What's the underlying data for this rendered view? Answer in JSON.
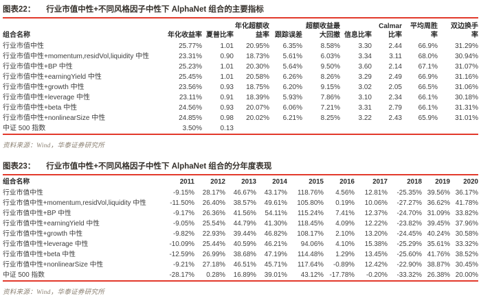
{
  "colors": {
    "rule_red": "#e2382a",
    "title_color": "#35302b",
    "text_color": "#3d3d3d",
    "source_color": "#8b8072"
  },
  "figure22": {
    "label": "图表22：",
    "title": "行业市值中性+不同风格因子中性下 AlphaNet 组合的主要指标",
    "col_headers": [
      "组合名称",
      "年化收益率",
      "夏普比率",
      "年化超额收\n益率",
      "跟踪误差",
      "超额收益最\n大回撤",
      "信息比率",
      "Calmar\n比率",
      "平均周胜\n率",
      "双边换手\n率"
    ],
    "rows": [
      [
        "行业市值中性",
        "25.77%",
        "1.01",
        "20.95%",
        "6.35%",
        "8.58%",
        "3.30",
        "2.44",
        "66.9%",
        "31.29%"
      ],
      [
        "行业市值中性+momentum,residVol,liquidity 中性",
        "23.31%",
        "0.90",
        "18.73%",
        "5.61%",
        "6.03%",
        "3.34",
        "3.11",
        "68.0%",
        "30.94%"
      ],
      [
        "行业市值中性+BP 中性",
        "25.23%",
        "1.01",
        "20.30%",
        "5.64%",
        "9.50%",
        "3.60",
        "2.14",
        "67.1%",
        "31.07%"
      ],
      [
        "行业市值中性+earningYield 中性",
        "25.45%",
        "1.01",
        "20.58%",
        "6.26%",
        "8.26%",
        "3.29",
        "2.49",
        "66.9%",
        "31.16%"
      ],
      [
        "行业市值中性+growth 中性",
        "23.56%",
        "0.93",
        "18.75%",
        "6.20%",
        "9.15%",
        "3.02",
        "2.05",
        "66.5%",
        "31.06%"
      ],
      [
        "行业市值中性+leverage 中性",
        "23.11%",
        "0.91",
        "18.39%",
        "5.93%",
        "7.86%",
        "3.10",
        "2.34",
        "66.1%",
        "30.18%"
      ],
      [
        "行业市值中性+beta 中性",
        "24.56%",
        "0.93",
        "20.07%",
        "6.06%",
        "7.21%",
        "3.31",
        "2.79",
        "66.1%",
        "31.31%"
      ],
      [
        "行业市值中性+nonlinearSize 中性",
        "24.85%",
        "0.98",
        "20.02%",
        "6.21%",
        "8.25%",
        "3.22",
        "2.43",
        "65.9%",
        "31.01%"
      ],
      [
        "中证 500 指数",
        "3.50%",
        "0.13",
        "",
        "",
        "",
        "",
        "",
        "",
        ""
      ]
    ],
    "source": "资料来源：Wind，华泰证券研究所"
  },
  "figure23": {
    "label": "图表23：",
    "title": "行业市值中性+不同风格因子中性下 AlphaNet 组合的分年度表现",
    "col_headers": [
      "组合名称",
      "2011",
      "2012",
      "2013",
      "2014",
      "2015",
      "2016",
      "2017",
      "2018",
      "2019",
      "2020"
    ],
    "rows": [
      [
        "行业市值中性",
        "-9.15%",
        "28.17%",
        "46.67%",
        "43.17%",
        "118.76%",
        "4.56%",
        "12.81%",
        "-25.35%",
        "39.56%",
        "36.17%"
      ],
      [
        "行业市值中性+momentum,residVol,liquidity 中性",
        "-11.50%",
        "26.40%",
        "38.57%",
        "49.61%",
        "105.80%",
        "0.19%",
        "10.06%",
        "-27.27%",
        "36.62%",
        "41.78%"
      ],
      [
        "行业市值中性+BP 中性",
        "-9.17%",
        "26.36%",
        "41.56%",
        "54.11%",
        "115.24%",
        "7.41%",
        "12.37%",
        "-24.70%",
        "31.09%",
        "33.82%"
      ],
      [
        "行业市值中性+earningYield 中性",
        "-9.05%",
        "25.54%",
        "44.79%",
        "41.30%",
        "118.45%",
        "4.09%",
        "12.22%",
        "-23.82%",
        "39.45%",
        "37.96%"
      ],
      [
        "行业市值中性+growth 中性",
        "-9.82%",
        "22.93%",
        "39.44%",
        "46.82%",
        "108.17%",
        "2.10%",
        "13.20%",
        "-24.45%",
        "40.24%",
        "30.58%"
      ],
      [
        "行业市值中性+leverage 中性",
        "-10.09%",
        "25.44%",
        "40.59%",
        "46.21%",
        "94.06%",
        "4.10%",
        "15.38%",
        "-25.29%",
        "35.61%",
        "33.32%"
      ],
      [
        "行业市值中性+beta 中性",
        "-12.59%",
        "26.99%",
        "38.68%",
        "47.19%",
        "114.48%",
        "1.29%",
        "13.45%",
        "-25.60%",
        "41.76%",
        "38.52%"
      ],
      [
        "行业市值中性+nonlinearSize 中性",
        "-9.21%",
        "27.18%",
        "46.51%",
        "45.71%",
        "117.64%",
        "-0.89%",
        "12.42%",
        "-22.90%",
        "38.87%",
        "30.45%"
      ],
      [
        "中证 500 指数",
        "-28.17%",
        "0.28%",
        "16.89%",
        "39.01%",
        "43.12%",
        "-17.78%",
        "-0.20%",
        "-33.32%",
        "26.38%",
        "20.00%"
      ]
    ],
    "source": "资料来源：Wind，华泰证券研究所"
  }
}
